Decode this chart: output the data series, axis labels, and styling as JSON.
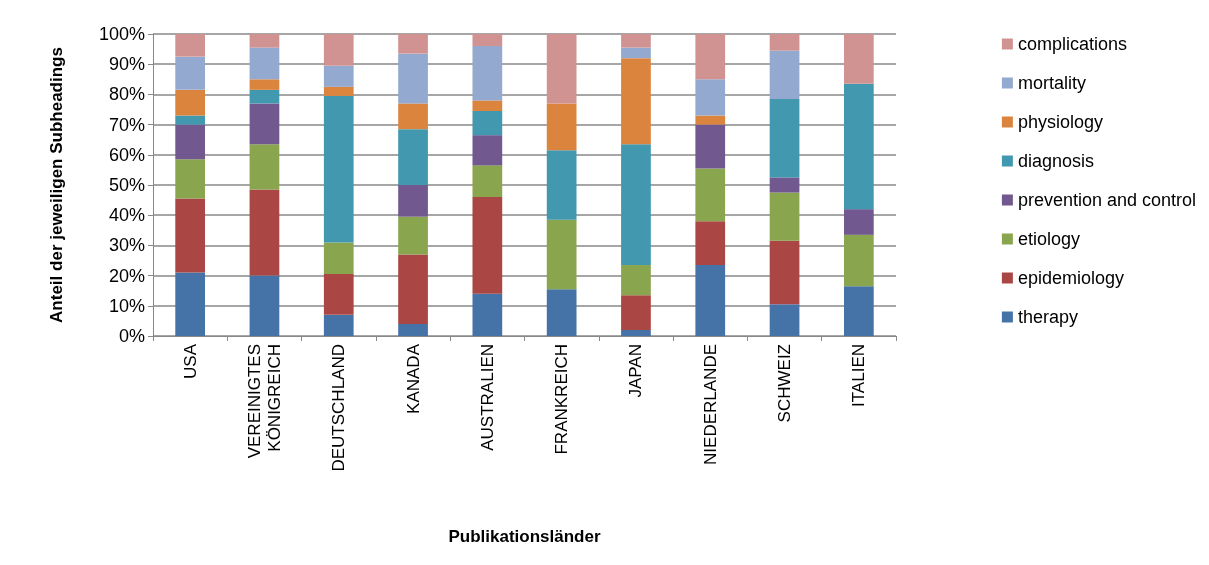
{
  "chart_data": {
    "type": "bar",
    "stacked": true,
    "xlabel": "Publikationsländer",
    "ylabel": "Anteil der jeweiligen Subheadings",
    "categories": [
      "USA",
      "VEREINIGTES KÖNIGREICH",
      "DEUTSCHLAND",
      "KANADA",
      "AUSTRALIEN",
      "FRANKREICH",
      "JAPAN",
      "NIEDERLANDE",
      "SCHWEIZ",
      "ITALIEN"
    ],
    "series": [
      {
        "name": "therapy",
        "color": "#4572a7",
        "values": [
          21,
          20,
          7,
          4,
          14,
          15.5,
          2,
          23.5,
          10.5,
          16.5
        ]
      },
      {
        "name": "epidemiology",
        "color": "#aa4643",
        "values": [
          24.5,
          28.5,
          13.5,
          23,
          32,
          0,
          11.5,
          14.5,
          21,
          0
        ]
      },
      {
        "name": "etiology",
        "color": "#89a54e",
        "values": [
          13,
          15,
          10.5,
          12.5,
          10.5,
          23,
          10,
          17.5,
          16,
          17
        ]
      },
      {
        "name": "prevention and control",
        "color": "#71588f",
        "values": [
          11.5,
          13.5,
          0,
          10.5,
          10,
          0,
          0,
          14.5,
          5,
          8.5
        ]
      },
      {
        "name": "diagnosis",
        "color": "#4198af",
        "values": [
          3,
          4.5,
          48.5,
          18.5,
          8,
          23,
          40,
          0,
          26,
          41.5
        ]
      },
      {
        "name": "physiology",
        "color": "#db843d",
        "values": [
          8.5,
          3.5,
          3,
          8.5,
          3.5,
          15.5,
          28.5,
          3,
          0,
          0
        ]
      },
      {
        "name": "mortality",
        "color": "#93a9cf",
        "values": [
          11,
          10.5,
          7,
          16.5,
          18,
          0,
          3.5,
          12,
          16,
          0
        ]
      },
      {
        "name": "complications",
        "color": "#d19392",
        "values": [
          7.5,
          4.5,
          10.5,
          6.5,
          4,
          23,
          4.5,
          15,
          5.5,
          16.5
        ]
      }
    ],
    "ylim": [
      0,
      100
    ],
    "yticks": [
      {
        "value": 0,
        "label": "0%"
      },
      {
        "value": 10,
        "label": "10%"
      },
      {
        "value": 20,
        "label": "20%"
      },
      {
        "value": 30,
        "label": "30%"
      },
      {
        "value": 40,
        "label": "40%"
      },
      {
        "value": 50,
        "label": "50%"
      },
      {
        "value": 60,
        "label": "60%"
      },
      {
        "value": 70,
        "label": "70%"
      },
      {
        "value": 80,
        "label": "80%"
      },
      {
        "value": 90,
        "label": "90%"
      },
      {
        "value": 100,
        "label": "100%"
      }
    ],
    "grid": "y",
    "legend": "right"
  }
}
